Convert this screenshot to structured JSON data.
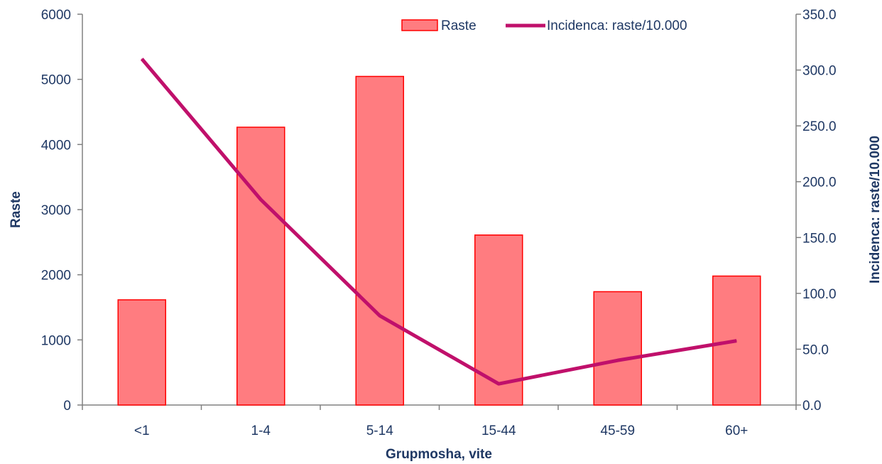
{
  "chart_data": {
    "type": "bar",
    "categories": [
      "<1",
      "1-4",
      "5-14",
      "15-44",
      "45-59",
      "60+"
    ],
    "series": [
      {
        "name": "Raste",
        "kind": "bar",
        "axis": "left",
        "color": "#ff7c80",
        "stroke": "#ff0000",
        "values": [
          1615,
          4265,
          5045,
          2610,
          1740,
          1980
        ]
      },
      {
        "name": "Incidenca: raste/10.000",
        "kind": "line",
        "axis": "right",
        "color": "#c0106b",
        "values": [
          310.0,
          184.0,
          80.0,
          19.0,
          40.0,
          57.5
        ]
      }
    ],
    "xlabel": "Grupmosha, vite",
    "ylabel": "Raste",
    "y2label": "Incidenca: raste/10.000",
    "ylim": [
      0,
      6000
    ],
    "y2lim": [
      0,
      350
    ],
    "yticks": [
      "0",
      "1000",
      "2000",
      "3000",
      "4000",
      "5000",
      "6000"
    ],
    "y2ticks": [
      "0.0",
      "50.0",
      "100.0",
      "150.0",
      "200.0",
      "250.0",
      "300.0",
      "350.0"
    ],
    "grid": false,
    "legend": "top-right"
  }
}
